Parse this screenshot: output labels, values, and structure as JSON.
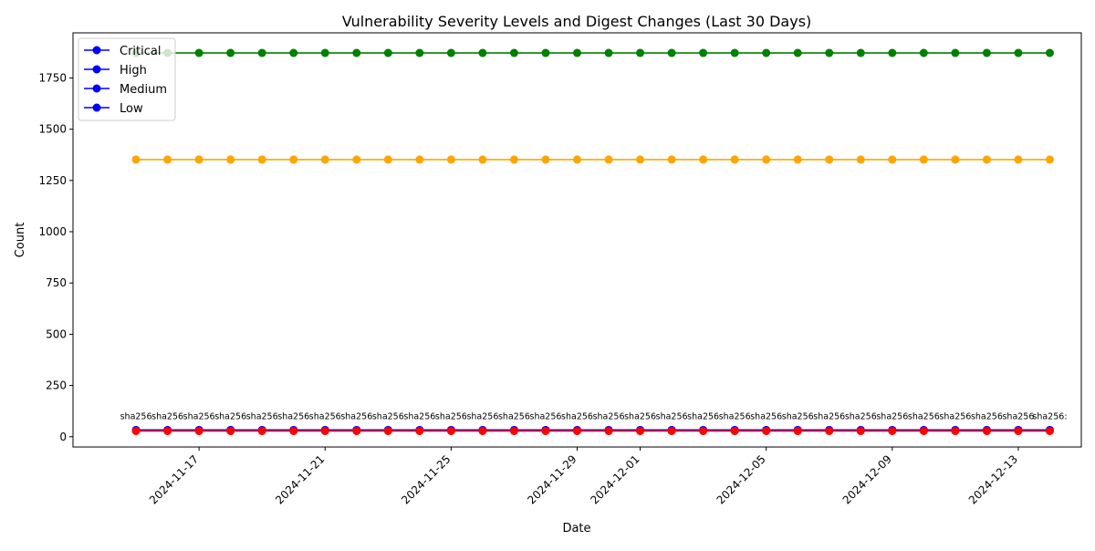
{
  "chart_data": {
    "type": "line",
    "title": "Vulnerability Severity Levels and Digest Changes (Last 30 Days)",
    "xlabel": "Date",
    "ylabel": "Count",
    "x_range": [
      "2024-11-13",
      "2024-12-15"
    ],
    "ylim": [
      -50,
      1970
    ],
    "y_ticks": [
      0,
      250,
      500,
      750,
      1000,
      1250,
      1500,
      1750
    ],
    "x_ticks": [
      "2024-11-17",
      "2024-11-21",
      "2024-11-25",
      "2024-11-29",
      "2024-12-01",
      "2024-12-05",
      "2024-12-09",
      "2024-12-13"
    ],
    "dates": [
      "2024-11-15",
      "2024-11-16",
      "2024-11-17",
      "2024-11-18",
      "2024-11-19",
      "2024-11-20",
      "2024-11-21",
      "2024-11-22",
      "2024-11-23",
      "2024-11-24",
      "2024-11-25",
      "2024-11-26",
      "2024-11-27",
      "2024-11-28",
      "2024-11-29",
      "2024-11-30",
      "2024-12-01",
      "2024-12-02",
      "2024-12-03",
      "2024-12-04",
      "2024-12-05",
      "2024-12-06",
      "2024-12-07",
      "2024-12-08",
      "2024-12-09",
      "2024-12-10",
      "2024-12-11",
      "2024-12-12",
      "2024-12-13",
      "2024-12-14"
    ],
    "series": [
      {
        "color": "#008000",
        "values": [
          1872,
          1872,
          1872,
          1872,
          1872,
          1872,
          1872,
          1872,
          1872,
          1872,
          1872,
          1872,
          1872,
          1872,
          1872,
          1872,
          1872,
          1872,
          1872,
          1872,
          1872,
          1872,
          1872,
          1872,
          1872,
          1872,
          1872,
          1872,
          1872,
          1872
        ]
      },
      {
        "color": "#ffa500",
        "values": [
          1352,
          1352,
          1352,
          1352,
          1352,
          1352,
          1352,
          1352,
          1352,
          1352,
          1352,
          1352,
          1352,
          1352,
          1352,
          1352,
          1352,
          1352,
          1352,
          1352,
          1352,
          1352,
          1352,
          1352,
          1352,
          1352,
          1352,
          1352,
          1352,
          1352
        ]
      },
      {
        "color": "#0000ff",
        "values": [
          33,
          33,
          33,
          33,
          33,
          33,
          33,
          33,
          33,
          33,
          33,
          33,
          33,
          33,
          33,
          33,
          33,
          33,
          33,
          33,
          33,
          33,
          33,
          33,
          33,
          33,
          33,
          33,
          33,
          33
        ]
      },
      {
        "color": "#ff0000",
        "values": [
          28,
          28,
          28,
          28,
          28,
          28,
          28,
          28,
          28,
          28,
          28,
          28,
          28,
          28,
          28,
          28,
          28,
          28,
          28,
          28,
          28,
          28,
          28,
          28,
          28,
          28,
          28,
          28,
          28,
          28
        ]
      }
    ],
    "legend": {
      "position": "upper-left",
      "color": "#0000ff",
      "entries": [
        "Critical",
        "High",
        "Medium",
        "Low"
      ]
    },
    "annotations": [
      "sha256",
      "sha256",
      "sha256",
      "sha256",
      "sha256",
      "sha256",
      "sha256",
      "sha256",
      "sha256",
      "sha256",
      "sha256",
      "sha256",
      "sha256",
      "sha256",
      "sha256",
      "sha256",
      "sha256",
      "sha256",
      "sha256",
      "sha256",
      "sha256",
      "sha256",
      "sha256",
      "sha256",
      "sha256",
      "sha256",
      "sha256",
      "sha256",
      "sha256",
      "sha256:"
    ],
    "annotation_y": 85,
    "grid": false
  }
}
